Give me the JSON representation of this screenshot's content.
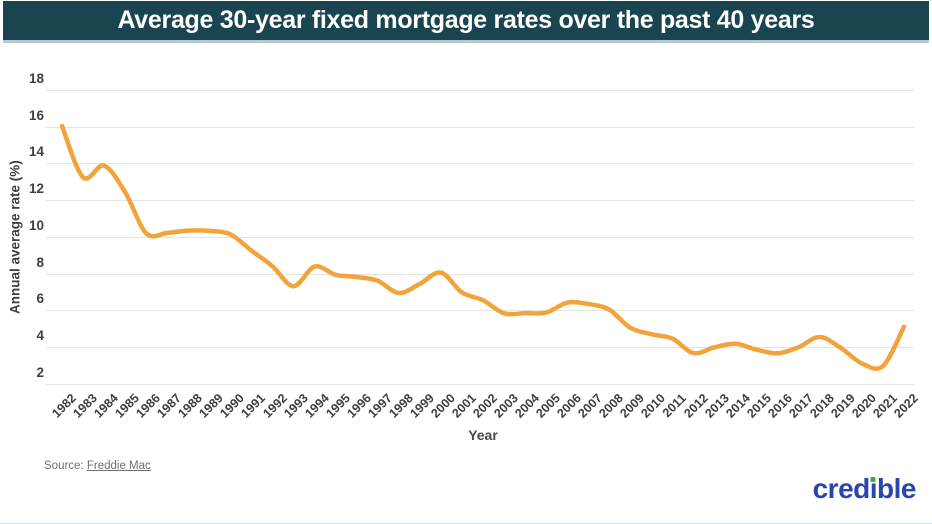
{
  "header": {
    "title": "Average 30-year fixed mortgage rates over the past 40 years"
  },
  "chart_data": {
    "type": "line",
    "title": "Average 30-year fixed mortgage rates over the past 40 years",
    "xlabel": "Year",
    "ylabel": "Annual average rate (%)",
    "ylim": [
      2,
      18
    ],
    "yticks": [
      18,
      16,
      14,
      12,
      10,
      8,
      6,
      4,
      2
    ],
    "grid": "horizontal-only",
    "legend": "none",
    "line_color": "#F2A43C",
    "x": [
      1982,
      1983,
      1984,
      1985,
      1986,
      1987,
      1988,
      1989,
      1990,
      1991,
      1992,
      1993,
      1994,
      1995,
      1996,
      1997,
      1998,
      1999,
      2000,
      2001,
      2002,
      2003,
      2004,
      2005,
      2006,
      2007,
      2008,
      2009,
      2010,
      2011,
      2012,
      2013,
      2014,
      2015,
      2016,
      2017,
      2018,
      2019,
      2020,
      2021,
      2022
    ],
    "values": [
      16.04,
      13.24,
      13.88,
      12.43,
      10.19,
      10.21,
      10.34,
      10.32,
      10.13,
      9.25,
      8.39,
      7.31,
      8.38,
      7.93,
      7.81,
      7.6,
      6.94,
      7.44,
      8.05,
      6.97,
      6.54,
      5.83,
      5.84,
      5.87,
      6.41,
      6.34,
      6.03,
      5.04,
      4.69,
      4.45,
      3.66,
      3.98,
      4.17,
      3.85,
      3.65,
      3.99,
      4.54,
      3.94,
      3.1,
      2.96,
      5.1
    ]
  },
  "source": {
    "prefix": "Source:",
    "link": "Freddie Mac"
  },
  "logo": {
    "brand": "credible",
    "part1": "cred",
    "dotless_i": "ı",
    "part2": "ble",
    "blue": "#2946AD",
    "green": "#3CAE49"
  },
  "colors": {
    "banner": "#1A4550",
    "banner_underline": "#B5C9CF",
    "gridline": "#E4E4E4",
    "tick_text": "#3F3F3F",
    "source_text": "#6F6F6F"
  }
}
